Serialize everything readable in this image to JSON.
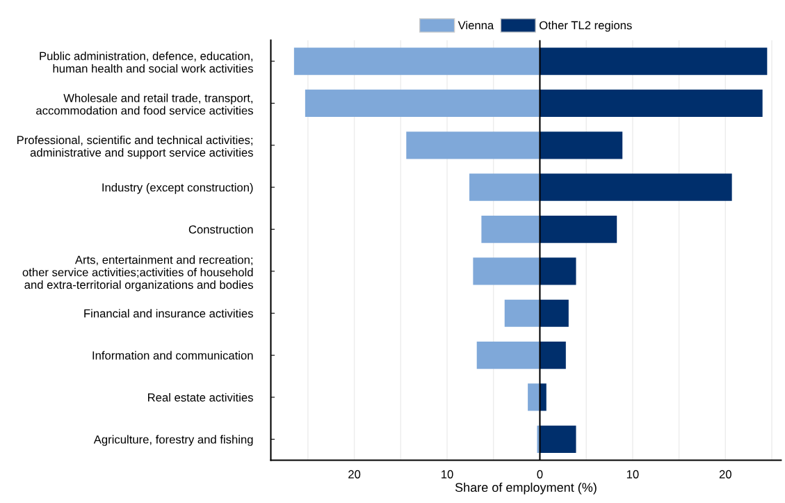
{
  "chart_data": {
    "type": "bar",
    "orientation": "horizontal",
    "xlabel": "Share of employment (%)",
    "categories": [
      "Public administration, defence, education,\nhuman health and social work activities",
      "Wholesale and retail trade, transport,\naccommodation and food service activities",
      "Professional, scientific and technical activities;\nadministrative and support service activities",
      "Industry (except construction)",
      "Construction",
      "Arts, entertainment and recreation;\nother service activities;activities of household\nand extra-territorial organizations and bodies",
      "Financial and insurance activities",
      "Information and communication",
      "Real estate activities",
      "Agriculture, forestry and fishing"
    ],
    "series": [
      {
        "name": "Vienna",
        "color": "#7fa8d9",
        "values": [
          -26.5,
          -25.3,
          -14.4,
          -7.6,
          -6.3,
          -7.2,
          -3.8,
          -6.8,
          -1.3,
          -0.3
        ]
      },
      {
        "name": "Other TL2 regions",
        "color": "#002f6c",
        "values": [
          24.5,
          24.0,
          8.9,
          20.7,
          8.3,
          3.9,
          3.1,
          2.8,
          0.7,
          3.9
        ]
      }
    ],
    "xlim": [
      -29,
      26
    ],
    "xticks": [
      {
        "value": -25,
        "label": null
      },
      {
        "value": -20,
        "label": "20"
      },
      {
        "value": -15,
        "label": null
      },
      {
        "value": -10,
        "label": "10"
      },
      {
        "value": -5,
        "label": null
      },
      0,
      {
        "value": 5,
        "label": null
      },
      10,
      {
        "value": 15,
        "label": null
      },
      20,
      {
        "value": 25,
        "label": null
      }
    ],
    "ref_lines": [
      {
        "axis": "x",
        "value": 0,
        "color": "#000000"
      }
    ],
    "grid": "x",
    "legend": "top",
    "stacked": true
  }
}
